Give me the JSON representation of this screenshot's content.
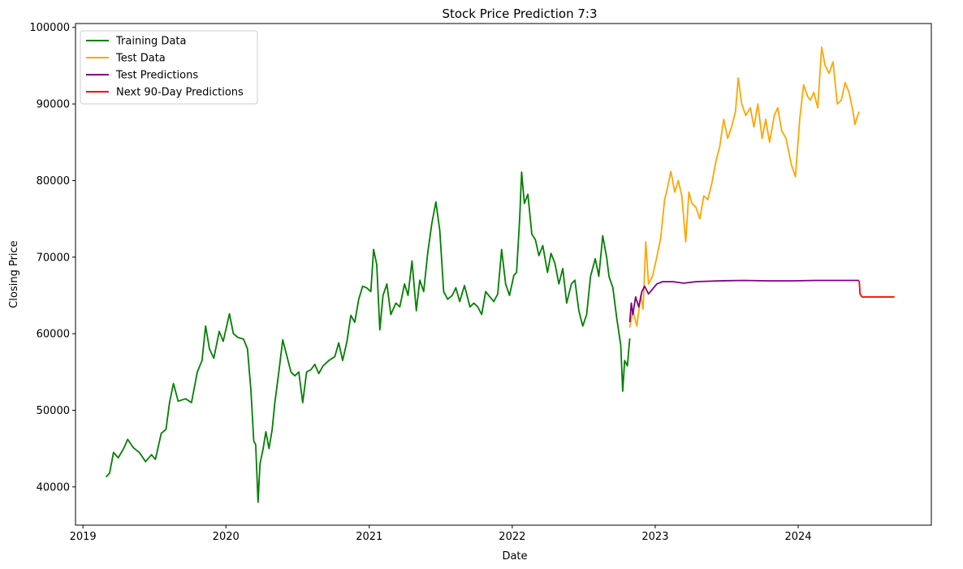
{
  "chart_data": {
    "type": "line",
    "title": "Stock Price Prediction 7:3",
    "xlabel": "Date",
    "ylabel": "Closing Price",
    "x_axis": {
      "type": "date",
      "range": [
        "2018-12-13",
        "2024-12-06"
      ],
      "tick_labels": [
        "2019",
        "2020",
        "2021",
        "2022",
        "2023",
        "2024"
      ],
      "tick_dates": [
        "2019-01-01",
        "2020-01-01",
        "2021-01-01",
        "2022-01-01",
        "2023-01-01",
        "2024-01-01"
      ]
    },
    "y_axis": {
      "range": [
        35000,
        100500
      ],
      "ticks": [
        40000,
        50000,
        60000,
        70000,
        80000,
        90000,
        100000
      ],
      "tick_labels": [
        "40000",
        "50000",
        "60000",
        "70000",
        "80000",
        "90000",
        "100000"
      ]
    },
    "grid": false,
    "legend": "top-left",
    "series": [
      {
        "name": "Training Data",
        "color": "#008000",
        "points": [
          [
            "2019-03-01",
            41300
          ],
          [
            "2019-03-10",
            41800
          ],
          [
            "2019-03-20",
            44500
          ],
          [
            "2019-04-01",
            43800
          ],
          [
            "2019-04-15",
            45000
          ],
          [
            "2019-04-25",
            46200
          ],
          [
            "2019-05-10",
            45100
          ],
          [
            "2019-05-25",
            44500
          ],
          [
            "2019-06-10",
            43300
          ],
          [
            "2019-06-25",
            44200
          ],
          [
            "2019-07-05",
            43600
          ],
          [
            "2019-07-20",
            47000
          ],
          [
            "2019-08-01",
            47500
          ],
          [
            "2019-08-10",
            51000
          ],
          [
            "2019-08-20",
            53500
          ],
          [
            "2019-09-01",
            51200
          ],
          [
            "2019-09-20",
            51500
          ],
          [
            "2019-10-05",
            51000
          ],
          [
            "2019-10-20",
            55000
          ],
          [
            "2019-11-01",
            56500
          ],
          [
            "2019-11-10",
            61000
          ],
          [
            "2019-11-20",
            58000
          ],
          [
            "2019-12-01",
            56800
          ],
          [
            "2019-12-15",
            60300
          ],
          [
            "2019-12-25",
            59000
          ],
          [
            "2020-01-10",
            62600
          ],
          [
            "2020-01-20",
            60000
          ],
          [
            "2020-02-01",
            59500
          ],
          [
            "2020-02-15",
            59300
          ],
          [
            "2020-02-25",
            58000
          ],
          [
            "2020-03-05",
            52500
          ],
          [
            "2020-03-12",
            46000
          ],
          [
            "2020-03-17",
            45500
          ],
          [
            "2020-03-23",
            38000
          ],
          [
            "2020-03-28",
            43000
          ],
          [
            "2020-04-05",
            45000
          ],
          [
            "2020-04-12",
            47200
          ],
          [
            "2020-04-20",
            45000
          ],
          [
            "2020-04-28",
            47500
          ],
          [
            "2020-05-05",
            51000
          ],
          [
            "2020-05-15",
            55000
          ],
          [
            "2020-05-25",
            59200
          ],
          [
            "2020-06-05",
            57000
          ],
          [
            "2020-06-15",
            55000
          ],
          [
            "2020-06-25",
            54500
          ],
          [
            "2020-07-05",
            55000
          ],
          [
            "2020-07-15",
            51000
          ],
          [
            "2020-07-25",
            55000
          ],
          [
            "2020-08-05",
            55300
          ],
          [
            "2020-08-15",
            56000
          ],
          [
            "2020-08-25",
            54800
          ],
          [
            "2020-09-05",
            55800
          ],
          [
            "2020-09-20",
            56500
          ],
          [
            "2020-10-05",
            57000
          ],
          [
            "2020-10-15",
            58800
          ],
          [
            "2020-10-25",
            56500
          ],
          [
            "2020-11-05",
            59000
          ],
          [
            "2020-11-15",
            62400
          ],
          [
            "2020-11-25",
            61500
          ],
          [
            "2020-12-05",
            64500
          ],
          [
            "2020-12-15",
            66200
          ],
          [
            "2020-12-25",
            66000
          ],
          [
            "2021-01-05",
            65500
          ],
          [
            "2021-01-12",
            71000
          ],
          [
            "2021-01-20",
            69000
          ],
          [
            "2021-01-28",
            60500
          ],
          [
            "2021-02-05",
            65000
          ],
          [
            "2021-02-15",
            66500
          ],
          [
            "2021-02-25",
            62500
          ],
          [
            "2021-03-10",
            64000
          ],
          [
            "2021-03-20",
            63500
          ],
          [
            "2021-04-01",
            66500
          ],
          [
            "2021-04-10",
            65000
          ],
          [
            "2021-04-20",
            69500
          ],
          [
            "2021-05-01",
            63000
          ],
          [
            "2021-05-10",
            67000
          ],
          [
            "2021-05-20",
            65500
          ],
          [
            "2021-05-30",
            70500
          ],
          [
            "2021-06-10",
            74500
          ],
          [
            "2021-06-20",
            77200
          ],
          [
            "2021-06-30",
            73500
          ],
          [
            "2021-07-10",
            65500
          ],
          [
            "2021-07-20",
            64500
          ],
          [
            "2021-08-01",
            65000
          ],
          [
            "2021-08-10",
            66000
          ],
          [
            "2021-08-20",
            64200
          ],
          [
            "2021-09-01",
            66300
          ],
          [
            "2021-09-15",
            63500
          ],
          [
            "2021-09-25",
            64000
          ],
          [
            "2021-10-05",
            63500
          ],
          [
            "2021-10-15",
            62500
          ],
          [
            "2021-10-25",
            65500
          ],
          [
            "2021-11-05",
            64800
          ],
          [
            "2021-11-15",
            64200
          ],
          [
            "2021-11-25",
            65200
          ],
          [
            "2021-12-05",
            71000
          ],
          [
            "2021-12-15",
            66500
          ],
          [
            "2021-12-25",
            65000
          ],
          [
            "2022-01-05",
            67600
          ],
          [
            "2022-01-12",
            68000
          ],
          [
            "2022-01-20",
            75000
          ],
          [
            "2022-01-25",
            81100
          ],
          [
            "2022-02-01",
            77000
          ],
          [
            "2022-02-10",
            78200
          ],
          [
            "2022-02-20",
            73000
          ],
          [
            "2022-03-01",
            72300
          ],
          [
            "2022-03-10",
            70200
          ],
          [
            "2022-03-20",
            71500
          ],
          [
            "2022-04-01",
            68000
          ],
          [
            "2022-04-10",
            70500
          ],
          [
            "2022-04-20",
            69200
          ],
          [
            "2022-04-30",
            66500
          ],
          [
            "2022-05-10",
            68500
          ],
          [
            "2022-05-20",
            64000
          ],
          [
            "2022-06-01",
            66500
          ],
          [
            "2022-06-10",
            67000
          ],
          [
            "2022-06-20",
            63000
          ],
          [
            "2022-06-30",
            61000
          ],
          [
            "2022-07-10",
            62500
          ],
          [
            "2022-07-20",
            67500
          ],
          [
            "2022-08-01",
            69800
          ],
          [
            "2022-08-10",
            67500
          ],
          [
            "2022-08-20",
            72800
          ],
          [
            "2022-08-30",
            70000
          ],
          [
            "2022-09-05",
            67500
          ],
          [
            "2022-09-15",
            66000
          ],
          [
            "2022-09-25",
            62000
          ],
          [
            "2022-10-05",
            58500
          ],
          [
            "2022-10-10",
            52500
          ],
          [
            "2022-10-15",
            56500
          ],
          [
            "2022-10-22",
            55800
          ],
          [
            "2022-10-28",
            59400
          ]
        ]
      },
      {
        "name": "Test Data",
        "color": "#ffa500",
        "points": [
          [
            "2022-10-28",
            60800
          ],
          [
            "2022-11-05",
            63000
          ],
          [
            "2022-11-15",
            61000
          ],
          [
            "2022-11-25",
            65000
          ],
          [
            "2022-12-01",
            63200
          ],
          [
            "2022-12-08",
            72000
          ],
          [
            "2022-12-15",
            66500
          ],
          [
            "2022-12-25",
            67500
          ],
          [
            "2023-01-05",
            70000
          ],
          [
            "2023-01-15",
            72500
          ],
          [
            "2023-01-25",
            77500
          ],
          [
            "2023-02-01",
            79000
          ],
          [
            "2023-02-10",
            81200
          ],
          [
            "2023-02-20",
            78500
          ],
          [
            "2023-03-01",
            80000
          ],
          [
            "2023-03-10",
            78000
          ],
          [
            "2023-03-20",
            72000
          ],
          [
            "2023-03-28",
            78500
          ],
          [
            "2023-04-05",
            77000
          ],
          [
            "2023-04-15",
            76500
          ],
          [
            "2023-04-25",
            75000
          ],
          [
            "2023-05-05",
            78000
          ],
          [
            "2023-05-15",
            77500
          ],
          [
            "2023-05-25",
            79500
          ],
          [
            "2023-06-05",
            82500
          ],
          [
            "2023-06-15",
            84500
          ],
          [
            "2023-06-25",
            88000
          ],
          [
            "2023-07-05",
            85500
          ],
          [
            "2023-07-15",
            87000
          ],
          [
            "2023-07-25",
            89000
          ],
          [
            "2023-08-01",
            93400
          ],
          [
            "2023-08-10",
            90000
          ],
          [
            "2023-08-20",
            88500
          ],
          [
            "2023-09-01",
            89500
          ],
          [
            "2023-09-10",
            87000
          ],
          [
            "2023-09-20",
            90000
          ],
          [
            "2023-10-01",
            85500
          ],
          [
            "2023-10-10",
            88000
          ],
          [
            "2023-10-20",
            85000
          ],
          [
            "2023-11-01",
            88500
          ],
          [
            "2023-11-10",
            89500
          ],
          [
            "2023-11-20",
            86500
          ],
          [
            "2023-12-01",
            85500
          ],
          [
            "2023-12-15",
            82000
          ],
          [
            "2023-12-25",
            80500
          ],
          [
            "2024-01-05",
            88000
          ],
          [
            "2024-01-15",
            92500
          ],
          [
            "2024-01-25",
            91000
          ],
          [
            "2024-02-01",
            90500
          ],
          [
            "2024-02-10",
            91500
          ],
          [
            "2024-02-20",
            89500
          ],
          [
            "2024-03-01",
            97400
          ],
          [
            "2024-03-10",
            95000
          ],
          [
            "2024-03-20",
            94000
          ],
          [
            "2024-03-30",
            95500
          ],
          [
            "2024-04-10",
            90000
          ],
          [
            "2024-04-20",
            90500
          ],
          [
            "2024-04-30",
            92800
          ],
          [
            "2024-05-10",
            91500
          ],
          [
            "2024-05-20",
            89000
          ],
          [
            "2024-05-25",
            87300
          ],
          [
            "2024-06-01",
            88500
          ],
          [
            "2024-06-05",
            89000
          ]
        ]
      },
      {
        "name": "Test Predictions",
        "color": "#800080",
        "points": [
          [
            "2022-10-28",
            61500
          ],
          [
            "2022-11-01",
            64000
          ],
          [
            "2022-11-05",
            62500
          ],
          [
            "2022-11-12",
            64800
          ],
          [
            "2022-11-20",
            63500
          ],
          [
            "2022-11-28",
            65500
          ],
          [
            "2022-12-05",
            66200
          ],
          [
            "2022-12-15",
            65200
          ],
          [
            "2022-12-25",
            65800
          ],
          [
            "2023-01-05",
            66500
          ],
          [
            "2023-01-20",
            66800
          ],
          [
            "2023-02-15",
            66800
          ],
          [
            "2023-03-15",
            66600
          ],
          [
            "2023-04-15",
            66800
          ],
          [
            "2023-06-15",
            66900
          ],
          [
            "2023-08-15",
            66950
          ],
          [
            "2023-10-15",
            66900
          ],
          [
            "2023-12-15",
            66900
          ],
          [
            "2024-02-15",
            66950
          ],
          [
            "2024-04-15",
            66950
          ],
          [
            "2024-06-05",
            66950
          ]
        ]
      },
      {
        "name": "Next 90-Day Predictions",
        "color": "#ff0000",
        "points": [
          [
            "2024-06-05",
            66900
          ],
          [
            "2024-06-07",
            65200
          ],
          [
            "2024-06-12",
            64800
          ],
          [
            "2024-07-15",
            64800
          ],
          [
            "2024-08-15",
            64800
          ],
          [
            "2024-09-03",
            64800
          ]
        ]
      }
    ]
  }
}
